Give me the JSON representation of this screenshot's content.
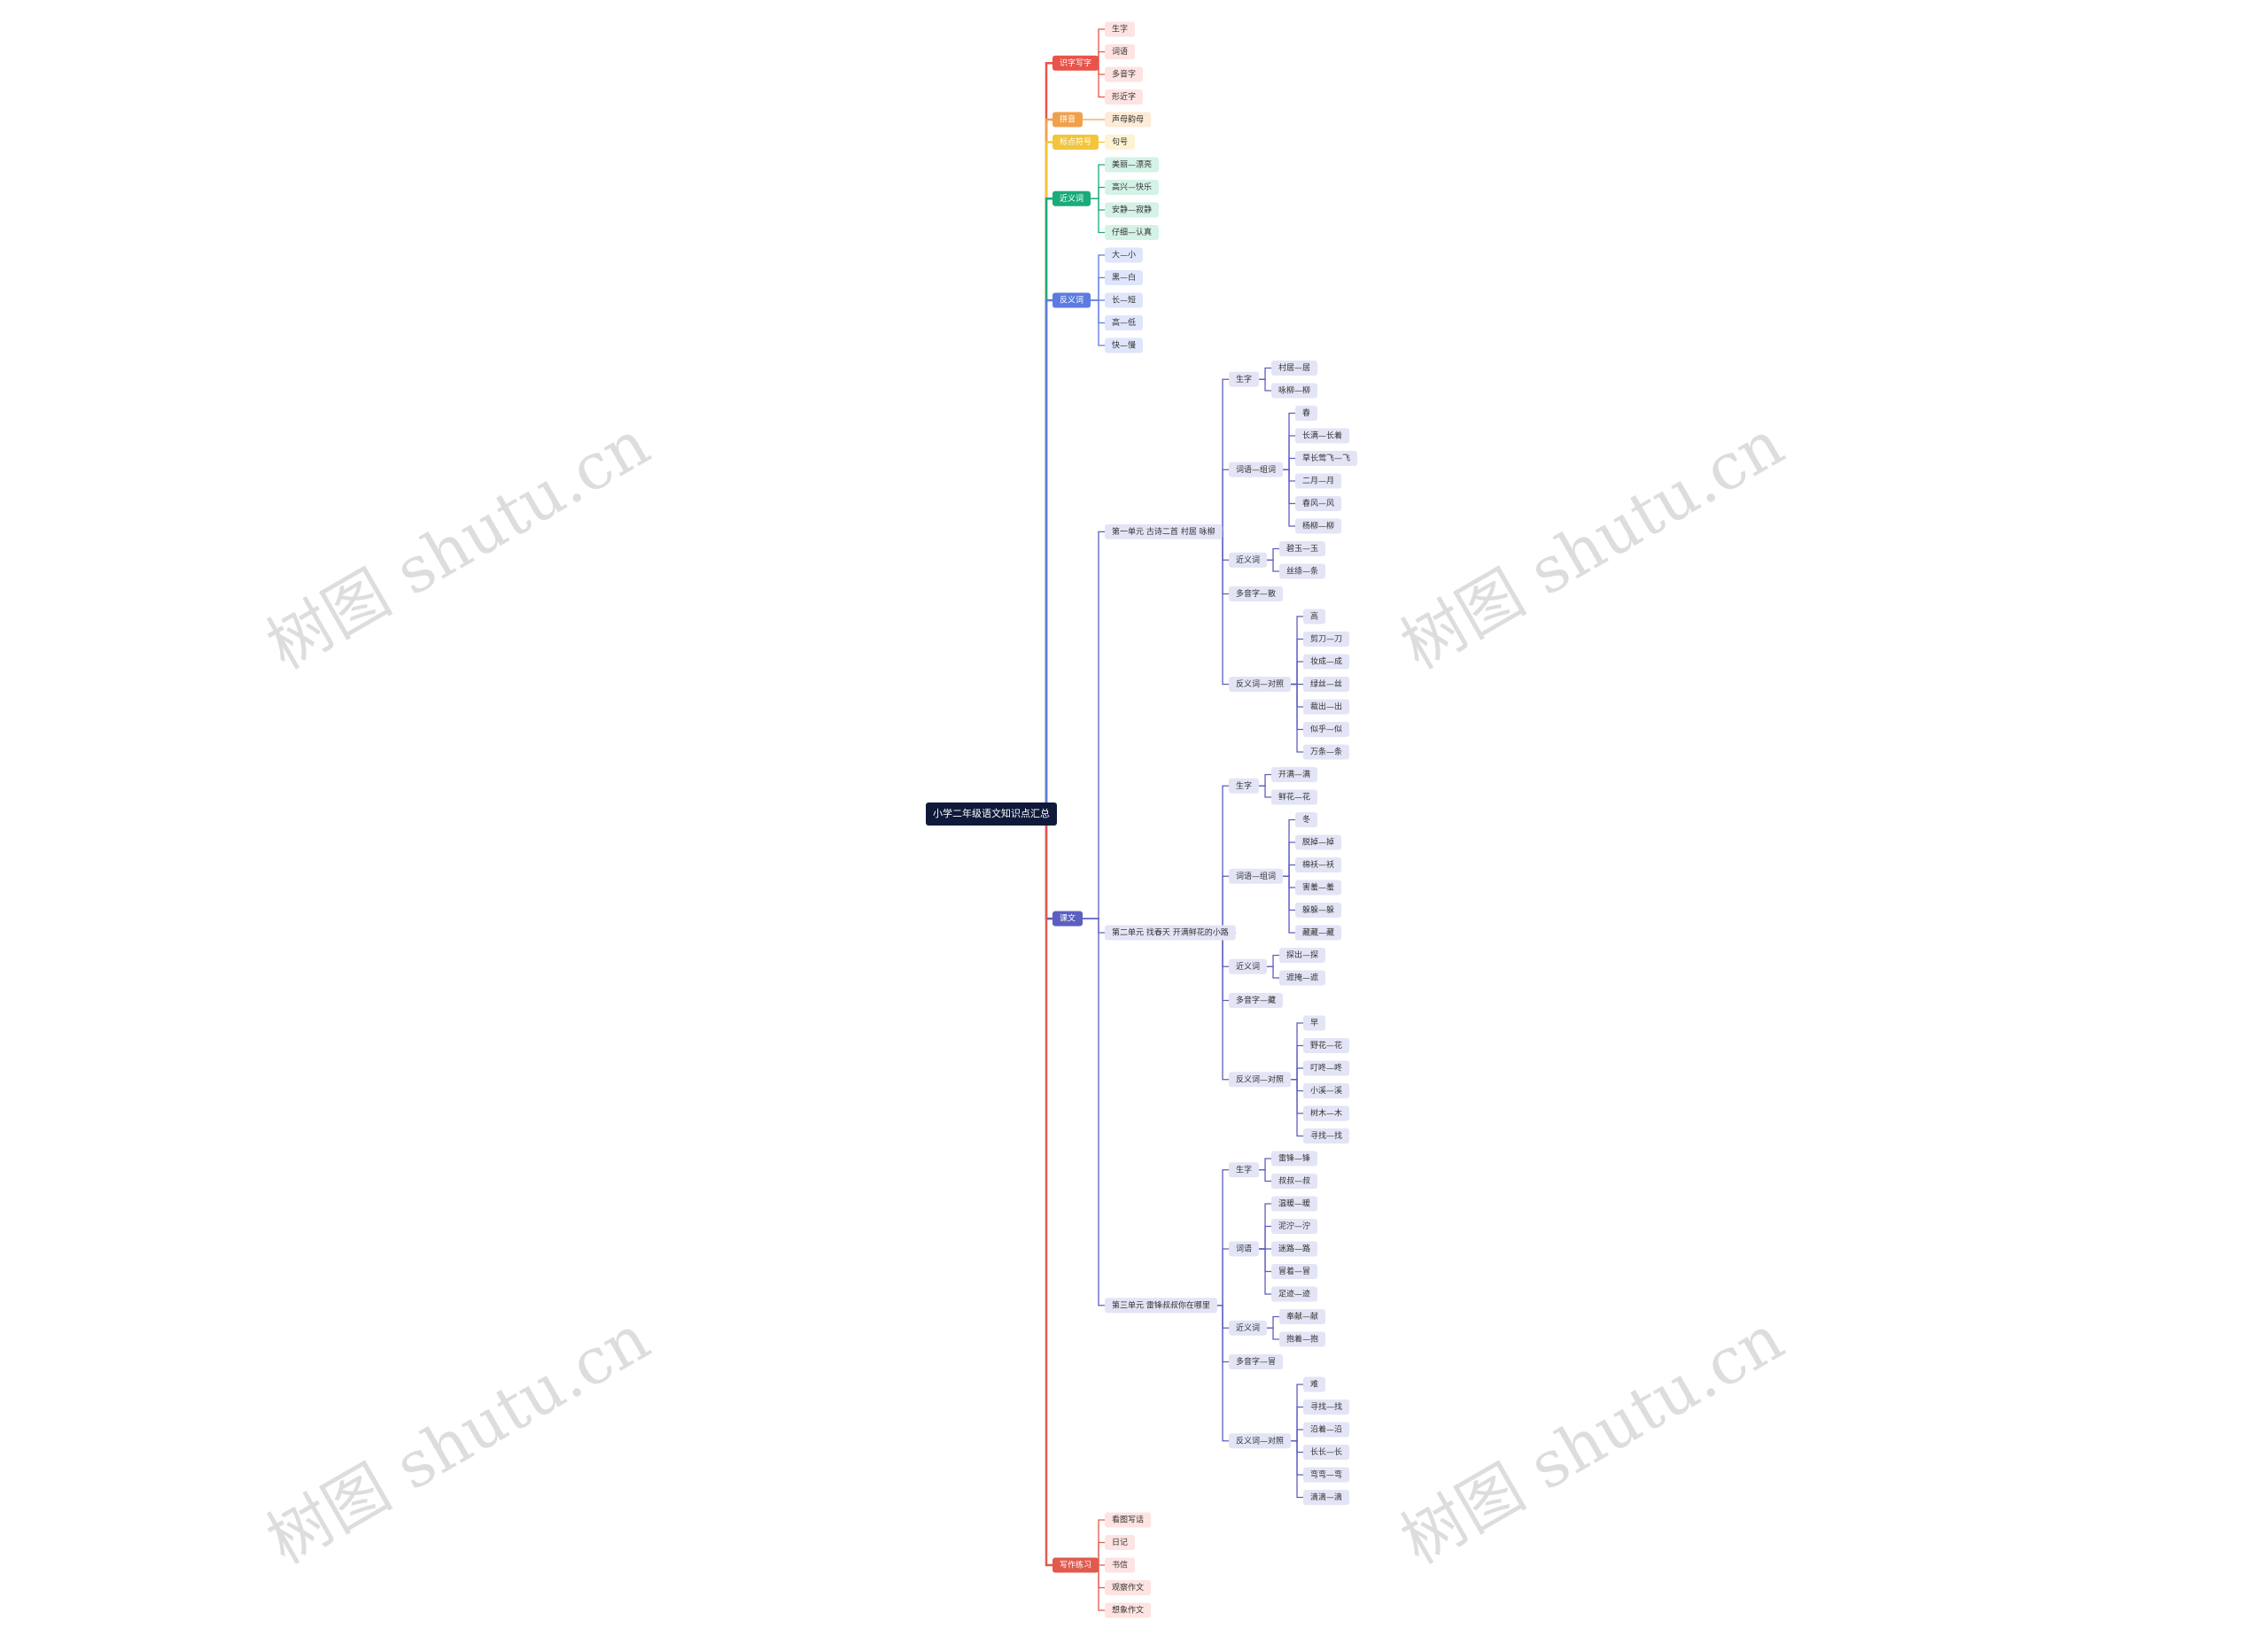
{
  "watermark": "树图 shutu.cn",
  "root": {
    "label": "小学二年级语文知识点汇总",
    "children": [
      {
        "label": "识字写字",
        "children": [
          {
            "label": "生字"
          },
          {
            "label": "词语"
          },
          {
            "label": "多音字"
          },
          {
            "label": "形近字"
          }
        ]
      },
      {
        "label": "拼音",
        "children": [
          {
            "label": "声母韵母"
          }
        ]
      },
      {
        "label": "标点符号",
        "children": [
          {
            "label": "句号"
          }
        ]
      },
      {
        "label": "近义词",
        "children": [
          {
            "label": "美丽—漂亮"
          },
          {
            "label": "高兴—快乐"
          },
          {
            "label": "安静—寂静"
          },
          {
            "label": "仔细—认真"
          }
        ]
      },
      {
        "label": "反义词",
        "children": [
          {
            "label": "大—小"
          },
          {
            "label": "黑—白"
          },
          {
            "label": "长—短"
          },
          {
            "label": "高—低"
          },
          {
            "label": "快—慢"
          }
        ]
      },
      {
        "label": "课文",
        "children": [
          {
            "label": "第一单元 古诗二首 村居 咏柳",
            "children": [
              {
                "label": "生字",
                "children": [
                  {
                    "label": "村居—居"
                  },
                  {
                    "label": "咏柳—柳"
                  }
                ]
              },
              {
                "label": "词语—组词",
                "children": [
                  {
                    "label": "春"
                  },
                  {
                    "label": "长满—长着"
                  },
                  {
                    "label": "草长莺飞—飞"
                  },
                  {
                    "label": "二月—月"
                  },
                  {
                    "label": "春风—风"
                  },
                  {
                    "label": "杨柳—柳"
                  }
                ]
              },
              {
                "label": "近义词",
                "children": [
                  {
                    "label": "碧玉—玉"
                  },
                  {
                    "label": "丝绦—条"
                  }
                ]
              },
              {
                "label": "多音字—散"
              },
              {
                "label": "反义词—对照",
                "children": [
                  {
                    "label": "高"
                  },
                  {
                    "label": "剪刀—刀"
                  },
                  {
                    "label": "妆成—成"
                  },
                  {
                    "label": "绿丝—丝"
                  },
                  {
                    "label": "裁出—出"
                  },
                  {
                    "label": "似乎—似"
                  },
                  {
                    "label": "万条—条"
                  }
                ]
              }
            ]
          },
          {
            "label": "第二单元 找春天 开满鲜花的小路",
            "children": [
              {
                "label": "生字",
                "children": [
                  {
                    "label": "开满—满"
                  },
                  {
                    "label": "鲜花—花"
                  }
                ]
              },
              {
                "label": "词语—组词",
                "children": [
                  {
                    "label": "冬"
                  },
                  {
                    "label": "脱掉—掉"
                  },
                  {
                    "label": "棉袄—袄"
                  },
                  {
                    "label": "害羞—羞"
                  },
                  {
                    "label": "躲躲—躲"
                  },
                  {
                    "label": "藏藏—藏"
                  }
                ]
              },
              {
                "label": "近义词",
                "children": [
                  {
                    "label": "探出—探"
                  },
                  {
                    "label": "遮掩—遮"
                  }
                ]
              },
              {
                "label": "多音字—藏"
              },
              {
                "label": "反义词—对照",
                "children": [
                  {
                    "label": "早"
                  },
                  {
                    "label": "野花—花"
                  },
                  {
                    "label": "叮咚—咚"
                  },
                  {
                    "label": "小溪—溪"
                  },
                  {
                    "label": "树木—木"
                  },
                  {
                    "label": "寻找—找"
                  }
                ]
              }
            ]
          },
          {
            "label": "第三单元 雷锋叔叔你在哪里",
            "children": [
              {
                "label": "生字",
                "children": [
                  {
                    "label": "雷锋—锋"
                  },
                  {
                    "label": "叔叔—叔"
                  }
                ]
              },
              {
                "label": "词语",
                "children": [
                  {
                    "label": "温暖—暖"
                  },
                  {
                    "label": "泥泞—泞"
                  },
                  {
                    "label": "迷路—路"
                  },
                  {
                    "label": "冒着—冒"
                  },
                  {
                    "label": "足迹—迹"
                  }
                ]
              },
              {
                "label": "近义词",
                "children": [
                  {
                    "label": "奉献—献"
                  },
                  {
                    "label": "抱着—抱"
                  }
                ]
              },
              {
                "label": "多音字—冒"
              },
              {
                "label": "反义词—对照",
                "children": [
                  {
                    "label": "难"
                  },
                  {
                    "label": "寻找—找"
                  },
                  {
                    "label": "沿着—沿"
                  },
                  {
                    "label": "长长—长"
                  },
                  {
                    "label": "弯弯—弯"
                  },
                  {
                    "label": "滴滴—滴"
                  }
                ]
              }
            ]
          }
        ]
      },
      {
        "label": "写作练习",
        "children": [
          {
            "label": "看图写话"
          },
          {
            "label": "日记"
          },
          {
            "label": "书信"
          },
          {
            "label": "观察作文"
          },
          {
            "label": "想象作文"
          }
        ]
      }
    ]
  }
}
